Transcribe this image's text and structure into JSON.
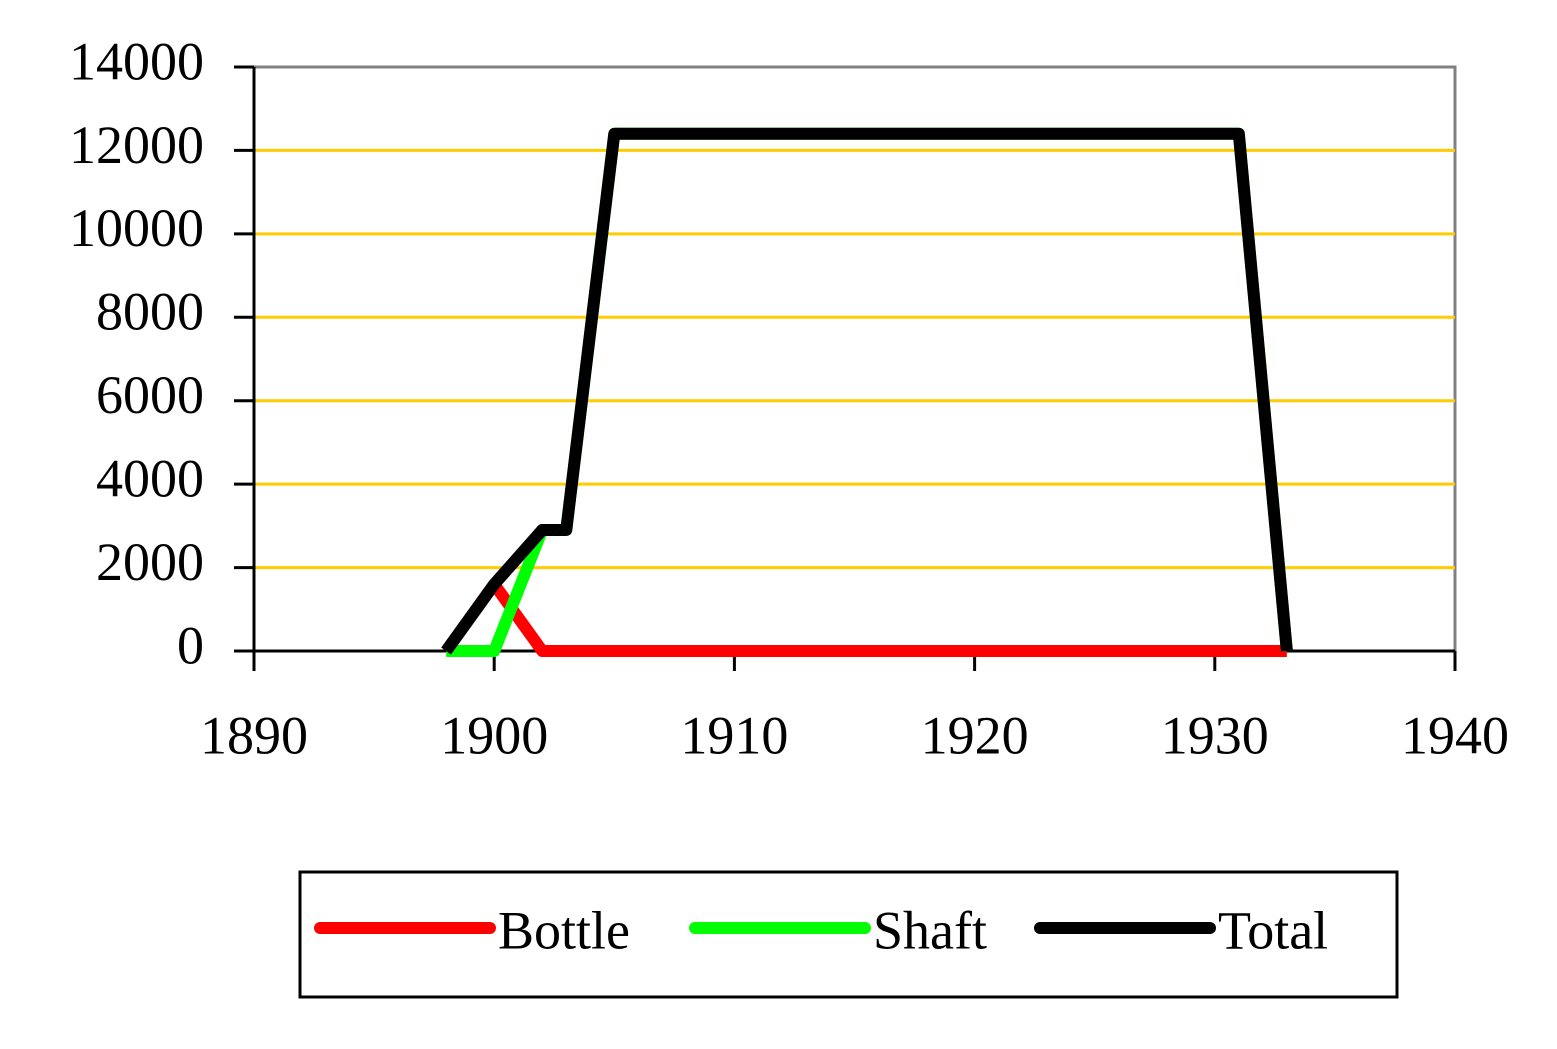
{
  "chart_data": {
    "type": "line",
    "x": [
      1898,
      1899,
      1900,
      1902,
      1903,
      1905,
      1931,
      1933
    ],
    "series": [
      {
        "name": "Bottle",
        "color": "#ff0000",
        "values": [
          0,
          800,
          1600,
          0,
          0,
          0,
          0,
          0
        ]
      },
      {
        "name": "Shaft",
        "color": "#00ff00",
        "values": [
          0,
          0,
          0,
          2900,
          2900,
          12400,
          12400,
          0
        ]
      },
      {
        "name": "Total",
        "color": "#000000",
        "values": [
          0,
          800,
          1600,
          2900,
          2900,
          12400,
          12400,
          0
        ]
      }
    ],
    "xlim": [
      1890,
      1940
    ],
    "xticks": [
      1890,
      1900,
      1910,
      1920,
      1930,
      1940
    ],
    "ylim": [
      0,
      14000
    ],
    "yticks": [
      0,
      2000,
      4000,
      6000,
      8000,
      10000,
      12000,
      14000
    ],
    "grid": true,
    "grid_color": "#ffcc00",
    "legend": "bottom"
  }
}
